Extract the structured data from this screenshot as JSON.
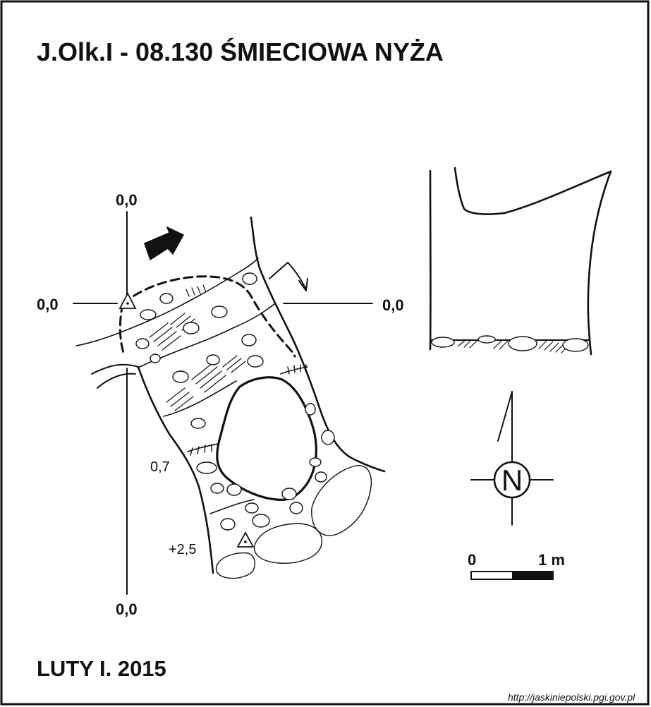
{
  "title": "J.Olk.I - 08.130  ŚMIECIOWA NYŻA",
  "date": "LUTY I. 2015",
  "source_url": "http://jaskiniepolski.pgi.gov.pl",
  "crosshair": {
    "top": "0,0",
    "bottom": "0,0",
    "left": "0,0",
    "right": "0,0"
  },
  "depth_labels": {
    "mid": "0,7",
    "low": "+2,5"
  },
  "north_arrow": {
    "letter": "N"
  },
  "scale_bar": {
    "start": "0",
    "end": "1 m"
  }
}
